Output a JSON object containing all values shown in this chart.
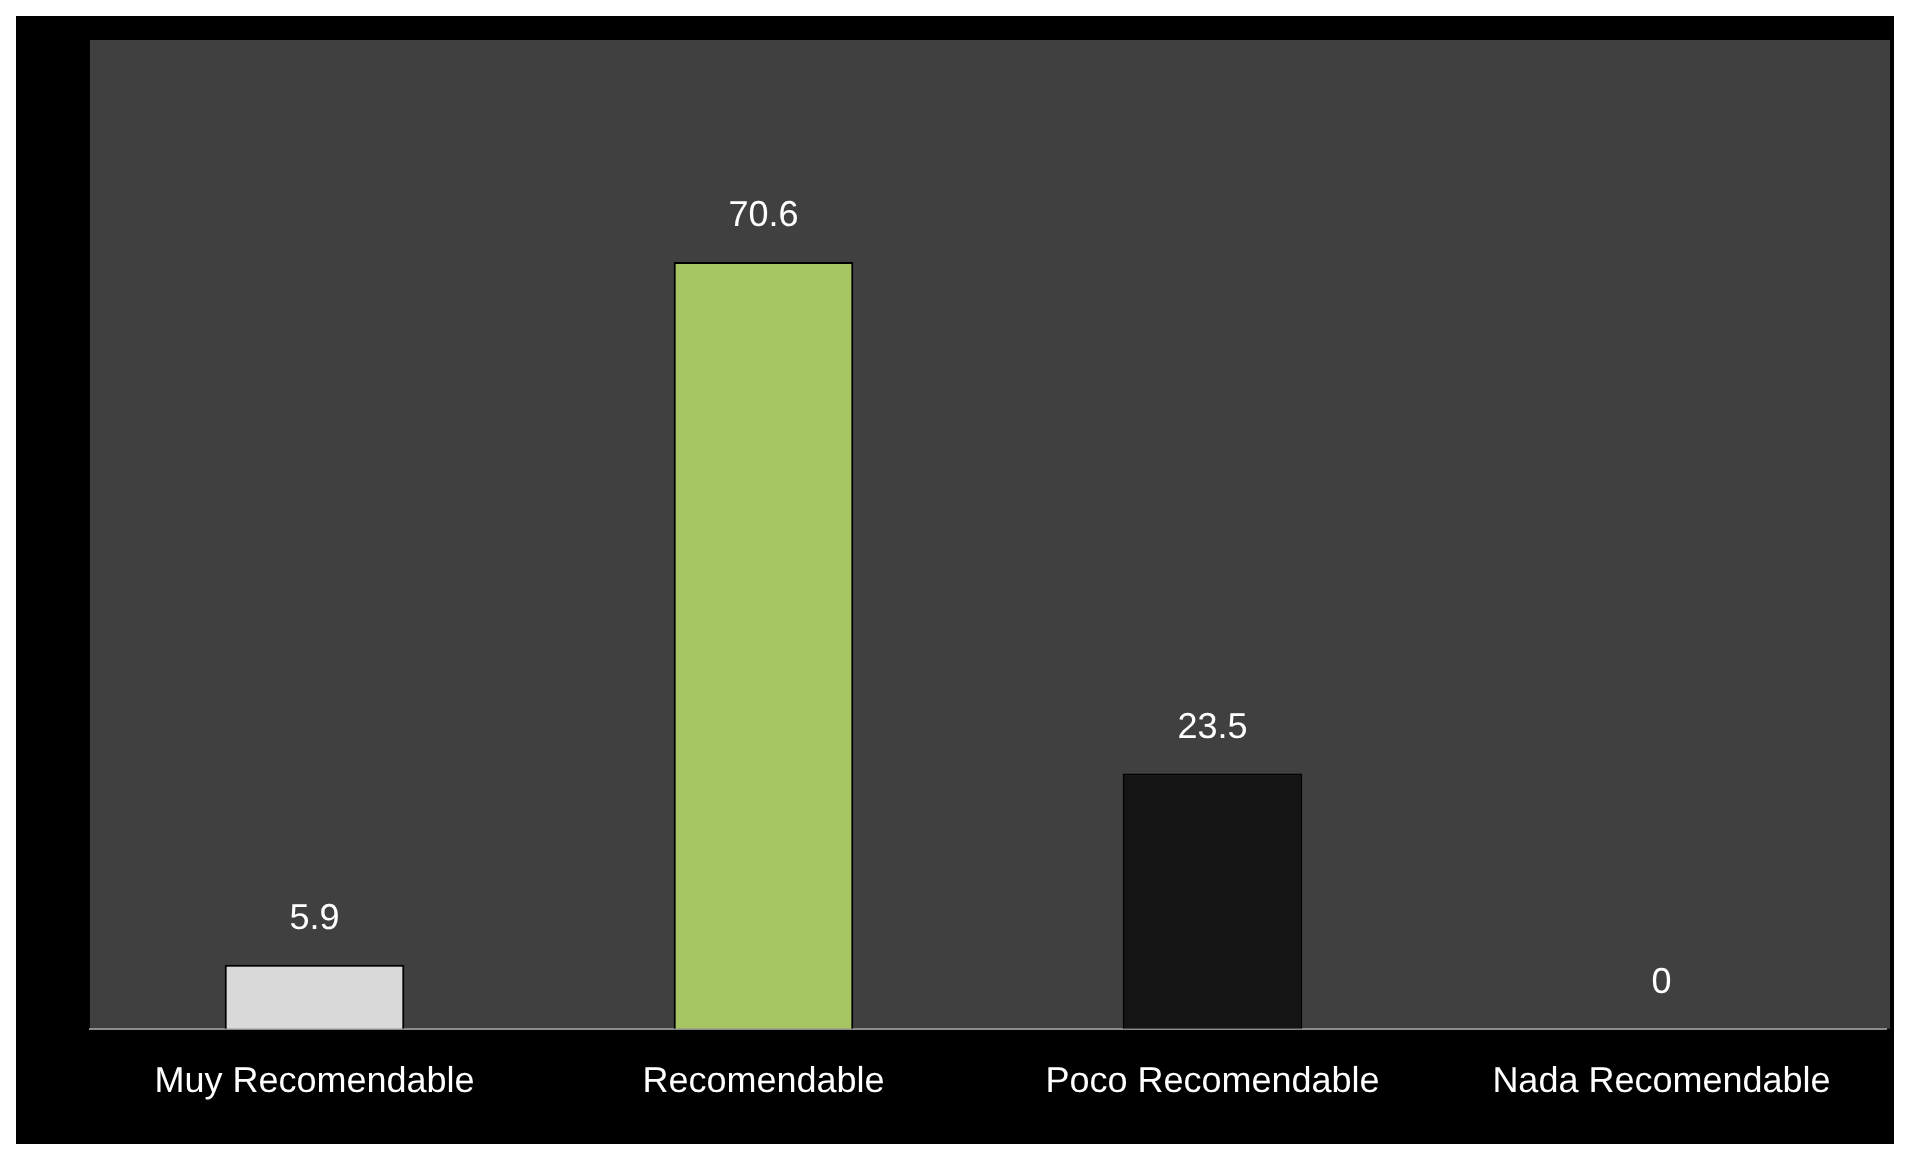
{
  "chart_data": {
    "type": "bar",
    "categories": [
      "Muy Recomendable",
      "Recomendable",
      "Poco Recomendable",
      "Nada Recomendable"
    ],
    "values": [
      5.9,
      70.6,
      23.5,
      0
    ],
    "colors": [
      "#d9d9d9",
      "#a5c663",
      "#141414",
      "#808080"
    ],
    "relative": false,
    "data_labels": true,
    "grid": false,
    "legend": false
  }
}
